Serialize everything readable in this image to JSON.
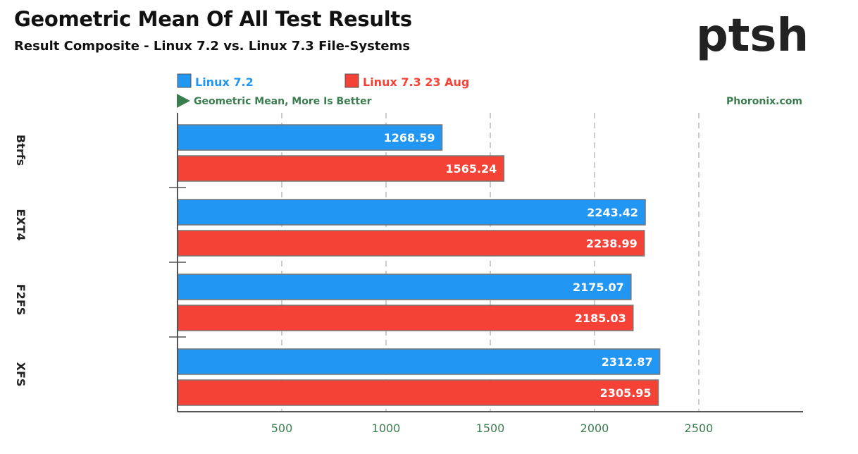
{
  "header": {
    "title": "Geometric Mean Of All Test Results",
    "subtitle": "Result Composite - Linux 7.2 vs. Linux 7.3 File-Systems"
  },
  "branding": {
    "logo": "ptsh",
    "site": "Phoronix.com"
  },
  "chart_data": {
    "type": "bar",
    "orientation": "horizontal",
    "note": "Geometric Mean, More Is Better",
    "categories": [
      "Btrfs",
      "EXT4",
      "F2FS",
      "XFS"
    ],
    "series": [
      {
        "name": "Linux 7.2",
        "color": "#2196f3",
        "values": [
          1268.59,
          2243.42,
          2175.07,
          2312.87
        ]
      },
      {
        "name": "Linux 7.3 23 Aug",
        "color": "#f44336",
        "values": [
          1565.24,
          2238.99,
          2185.03,
          2305.95
        ]
      }
    ],
    "xlim": [
      0,
      3000
    ],
    "xticks": [
      500,
      1000,
      1500,
      2000,
      2500
    ],
    "grid": true,
    "legend": "top-left"
  }
}
